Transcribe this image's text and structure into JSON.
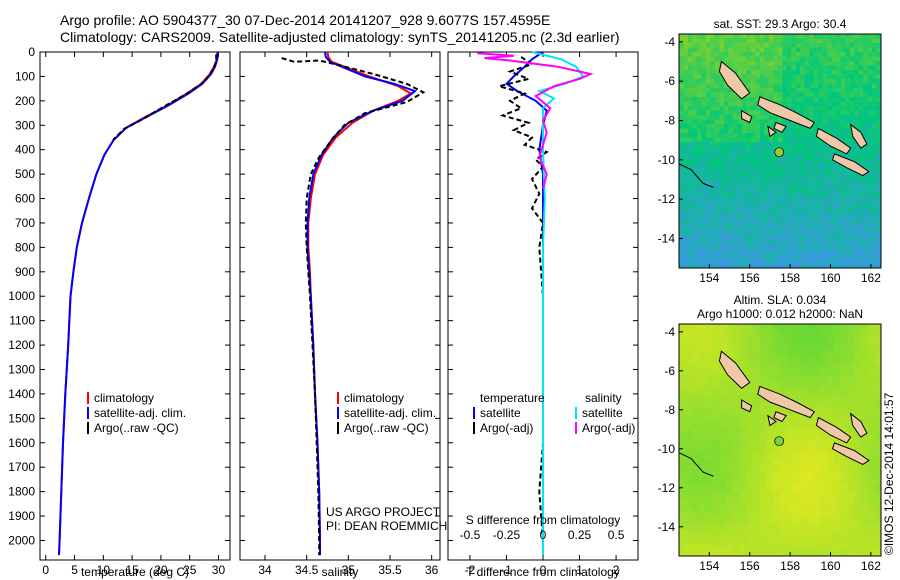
{
  "header": {
    "line1": "Argo profile: AO 5904377_30 07-Dec-2014 20141207_928 9.6077S 157.4595E",
    "line2": "Climatology: CARS2009. Satellite-adjusted climatology: synTS_20141205.nc (2.3d earlier)"
  },
  "colors": {
    "climatology": "#ff0000",
    "satellite": "#0000ff",
    "argo": "#000000",
    "sal_sat": "#00e5ee",
    "sal_argo": "#ff00ff"
  },
  "chart_data": [
    {
      "type": "line",
      "id": "temperature",
      "xlabel": "temperature (deg C)",
      "xlim": [
        -1,
        32
      ],
      "ylim": [
        0,
        2080
      ],
      "xticks": [
        0,
        5,
        10,
        15,
        20,
        25,
        30
      ],
      "yticks": [
        0,
        100,
        200,
        300,
        400,
        500,
        600,
        700,
        800,
        900,
        1000,
        1100,
        1200,
        1300,
        1400,
        1500,
        1600,
        1700,
        1800,
        1900,
        2000
      ],
      "legend": [
        "climatology",
        "satellite-adj. clim.",
        "Argo(..raw -QC)"
      ],
      "series": [
        {
          "name": "climatology",
          "color": "#ff0000",
          "points": [
            [
              29.8,
              0
            ],
            [
              29.7,
              30
            ],
            [
              29.2,
              60
            ],
            [
              28.5,
              90
            ],
            [
              27,
              130
            ],
            [
              24.5,
              170
            ],
            [
              21,
              220
            ],
            [
              17,
              270
            ],
            [
              14,
              310
            ],
            [
              11.8,
              360
            ],
            [
              10.2,
              420
            ],
            [
              8.8,
              500
            ],
            [
              7.5,
              600
            ],
            [
              6.3,
              700
            ],
            [
              5.4,
              800
            ],
            [
              4.8,
              900
            ],
            [
              4.3,
              1000
            ],
            [
              3.9,
              1200
            ],
            [
              3.4,
              1400
            ],
            [
              3.0,
              1600
            ],
            [
              2.7,
              1800
            ],
            [
              2.4,
              2000
            ],
            [
              2.3,
              2060
            ]
          ]
        },
        {
          "name": "satellite-adj. clim.",
          "color": "#0000ff",
          "points": [
            [
              29.9,
              0
            ],
            [
              29.8,
              30
            ],
            [
              29.4,
              60
            ],
            [
              28.7,
              90
            ],
            [
              27.2,
              130
            ],
            [
              24.8,
              170
            ],
            [
              21.2,
              220
            ],
            [
              17.2,
              270
            ],
            [
              14,
              310
            ],
            [
              11.8,
              360
            ],
            [
              10.2,
              420
            ],
            [
              8.8,
              500
            ],
            [
              7.5,
              600
            ],
            [
              6.3,
              700
            ],
            [
              5.4,
              800
            ],
            [
              4.8,
              900
            ],
            [
              4.3,
              1000
            ],
            [
              3.9,
              1200
            ],
            [
              3.4,
              1400
            ],
            [
              3.0,
              1600
            ],
            [
              2.7,
              1800
            ],
            [
              2.4,
              2000
            ],
            [
              2.3,
              2060
            ]
          ]
        },
        {
          "name": "Argo(..raw -QC)",
          "color": "#000000",
          "points": [
            [
              29.6,
              10
            ],
            [
              29.6,
              40
            ],
            [
              29.1,
              70
            ],
            [
              28.3,
              100
            ],
            [
              26.8,
              135
            ],
            [
              24.2,
              175
            ],
            [
              20.8,
              220
            ],
            [
              16.8,
              275
            ],
            [
              13.6,
              315
            ],
            [
              11.7,
              360
            ]
          ]
        }
      ]
    },
    {
      "type": "line",
      "id": "salinity",
      "xlabel": "salinity",
      "xlim": [
        33.7,
        36.1
      ],
      "ylim": [
        0,
        2080
      ],
      "xticks": [
        34,
        34.5,
        35,
        35.5,
        36
      ],
      "legend": [
        "climatology",
        "satellite-adj. clim.",
        "Argo(..raw -QC)"
      ],
      "annotation": [
        "US ARGO PROJECT",
        "PI: DEAN ROEMMICH"
      ],
      "series": [
        {
          "name": "climatology",
          "color": "#ff0000",
          "points": [
            [
              34.75,
              0
            ],
            [
              34.76,
              20
            ],
            [
              34.8,
              40
            ],
            [
              34.95,
              60
            ],
            [
              35.25,
              100
            ],
            [
              35.6,
              140
            ],
            [
              35.75,
              170
            ],
            [
              35.6,
              200
            ],
            [
              35.3,
              240
            ],
            [
              35.05,
              290
            ],
            [
              34.85,
              350
            ],
            [
              34.7,
              420
            ],
            [
              34.6,
              500
            ],
            [
              34.55,
              600
            ],
            [
              34.52,
              700
            ],
            [
              34.52,
              800
            ],
            [
              34.54,
              900
            ],
            [
              34.55,
              1000
            ],
            [
              34.58,
              1200
            ],
            [
              34.6,
              1400
            ],
            [
              34.63,
              1600
            ],
            [
              34.65,
              1800
            ],
            [
              34.66,
              2000
            ],
            [
              34.66,
              2060
            ]
          ]
        },
        {
          "name": "satellite-adj. clim.",
          "color": "#0000ff",
          "points": [
            [
              34.72,
              0
            ],
            [
              34.73,
              20
            ],
            [
              34.78,
              40
            ],
            [
              34.92,
              60
            ],
            [
              35.2,
              100
            ],
            [
              35.55,
              130
            ],
            [
              35.8,
              160
            ],
            [
              35.65,
              200
            ],
            [
              35.3,
              240
            ],
            [
              35.0,
              290
            ],
            [
              34.82,
              350
            ],
            [
              34.68,
              420
            ],
            [
              34.58,
              500
            ],
            [
              34.53,
              600
            ],
            [
              34.51,
              700
            ],
            [
              34.51,
              800
            ],
            [
              34.53,
              900
            ],
            [
              34.55,
              1000
            ],
            [
              34.58,
              1200
            ],
            [
              34.6,
              1400
            ],
            [
              34.63,
              1600
            ],
            [
              34.65,
              1800
            ],
            [
              34.66,
              2000
            ],
            [
              34.66,
              2060
            ]
          ]
        },
        {
          "name": "Argo(..raw -QC)",
          "color": "#000000",
          "points": [
            [
              34.2,
              25
            ],
            [
              34.35,
              40
            ],
            [
              34.65,
              35
            ],
            [
              34.9,
              55
            ],
            [
              35.3,
              90
            ],
            [
              35.7,
              130
            ],
            [
              35.9,
              165
            ],
            [
              35.7,
              205
            ],
            [
              35.2,
              250
            ],
            [
              34.95,
              300
            ],
            [
              34.8,
              360
            ],
            [
              34.65,
              430
            ],
            [
              34.55,
              500
            ],
            [
              34.5,
              600
            ],
            [
              34.49,
              700
            ],
            [
              34.5,
              800
            ],
            [
              34.52,
              900
            ],
            [
              34.54,
              1000
            ],
            [
              34.57,
              1200
            ],
            [
              34.6,
              1400
            ],
            [
              34.62,
              1600
            ],
            [
              34.64,
              1800
            ],
            [
              34.65,
              2000
            ],
            [
              34.65,
              2060
            ]
          ]
        }
      ]
    },
    {
      "type": "line",
      "id": "difference",
      "xlabel": "T difference from climatology",
      "xlabel_top": "S difference from climatology",
      "xlim": [
        -2.6,
        2.6
      ],
      "ylim": [
        0,
        2080
      ],
      "xticks": [
        -2,
        -1,
        0,
        1,
        2
      ],
      "xticks_top": [
        -0.5,
        -0.25,
        0,
        0.25,
        0.5
      ],
      "legend_headers": [
        "temperature",
        "salinity"
      ],
      "legend": [
        "satellite",
        "Argo(-adj)",
        "satellite",
        "Argo(-adj)"
      ],
      "series": [
        {
          "name": "T satellite",
          "color": "#0000ff",
          "points": [
            [
              0,
              0
            ],
            [
              -0.3,
              30
            ],
            [
              -0.5,
              60
            ],
            [
              -0.8,
              100
            ],
            [
              -1.0,
              130
            ],
            [
              -0.7,
              160
            ],
            [
              -0.2,
              200
            ],
            [
              0.1,
              240
            ],
            [
              0,
              300
            ],
            [
              -0.1,
              400
            ],
            [
              0,
              500
            ],
            [
              0,
              700
            ],
            [
              0,
              1000
            ],
            [
              0,
              1500
            ],
            [
              0,
              2060
            ]
          ]
        },
        {
          "name": "T Argo(-adj)",
          "color": "#000000",
          "points": [
            [
              -0.6,
              20
            ],
            [
              -0.3,
              50
            ],
            [
              -0.9,
              80
            ],
            [
              -0.4,
              110
            ],
            [
              -1.2,
              140
            ],
            [
              -0.5,
              170
            ],
            [
              -0.9,
              200
            ],
            [
              -0.6,
              230
            ],
            [
              -1.1,
              260
            ],
            [
              -0.4,
              290
            ],
            [
              -0.8,
              320
            ],
            [
              -0.3,
              350
            ],
            [
              -0.5,
              380
            ],
            [
              0.1,
              410
            ],
            [
              -0.2,
              440
            ],
            [
              0,
              470
            ],
            [
              -0.3,
              520
            ],
            [
              -0.1,
              580
            ],
            [
              -0.3,
              640
            ],
            [
              0,
              700
            ],
            [
              -0.1,
              800
            ],
            [
              0,
              1000
            ],
            [
              0,
              1600
            ],
            [
              -0.1,
              1800
            ],
            [
              0,
              2000
            ]
          ]
        },
        {
          "name": "S satellite",
          "color": "#00e5ee",
          "points": [
            [
              -0.3,
              0
            ],
            [
              0.5,
              30
            ],
            [
              0.9,
              60
            ],
            [
              1.1,
              100
            ],
            [
              0.6,
              130
            ],
            [
              -0.1,
              160
            ],
            [
              0.3,
              190
            ],
            [
              0,
              230
            ],
            [
              0,
              300
            ],
            [
              0,
              400
            ],
            [
              0.05,
              600
            ],
            [
              0,
              800
            ],
            [
              0,
              1200
            ],
            [
              0,
              1600
            ],
            [
              0,
              2060
            ]
          ]
        },
        {
          "name": "S Argo(-adj)",
          "color": "#ff00ff",
          "points": [
            [
              -1.8,
              5
            ],
            [
              -0.8,
              15
            ],
            [
              -1.6,
              25
            ],
            [
              -0.9,
              35
            ],
            [
              0.4,
              60
            ],
            [
              1.3,
              90
            ],
            [
              1.0,
              110
            ],
            [
              0.3,
              140
            ],
            [
              -0.2,
              180
            ],
            [
              0.2,
              230
            ],
            [
              0,
              280
            ],
            [
              0.1,
              330
            ],
            [
              0,
              380
            ],
            [
              -0.1,
              430
            ],
            [
              0.1,
              500
            ],
            [
              0,
              560
            ]
          ]
        }
      ]
    },
    {
      "type": "heatmap",
      "id": "sst_map",
      "title": "sat. SST: 29.3 Argo: 30.4",
      "xlim": [
        152.5,
        162.5
      ],
      "ylim": [
        -15.5,
        -3.6
      ],
      "xticks": [
        154,
        156,
        158,
        160,
        162
      ],
      "yticks": [
        -4,
        -6,
        -8,
        -10,
        -12,
        -14
      ],
      "argo_position": [
        157.46,
        -9.61
      ]
    },
    {
      "type": "heatmap",
      "id": "sla_map",
      "title_lines": [
        "Altim. SLA: 0.034",
        "Argo h1000: 0.012 h2000: NaN"
      ],
      "xlim": [
        152.5,
        162.5
      ],
      "ylim": [
        -15.5,
        -3.6
      ],
      "xticks": [
        154,
        156,
        158,
        160,
        162
      ],
      "yticks": [
        -4,
        -6,
        -8,
        -10,
        -12,
        -14
      ],
      "argo_position": [
        157.46,
        -9.61
      ]
    }
  ],
  "watermark": "©IMOS 12-Dec-2014 14:01:57"
}
